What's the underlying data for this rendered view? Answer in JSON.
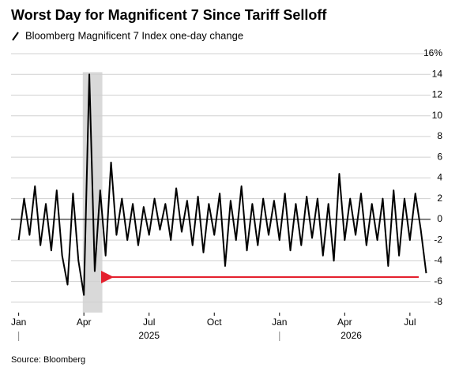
{
  "chart_data": {
    "type": "line",
    "title": "Worst Day for Magnificent 7 Since Tariff Selloff",
    "subtitle": "Bloomberg Magnificent 7 Index one-day change",
    "source": "Source: Bloomberg",
    "x": [
      0,
      0.25,
      0.5,
      0.75,
      1,
      1.25,
      1.5,
      1.75,
      2,
      2.25,
      2.5,
      2.75,
      3,
      3.25,
      3.5,
      3.75,
      4,
      4.25,
      4.5,
      4.75,
      5,
      5.25,
      5.5,
      5.75,
      6,
      6.25,
      6.5,
      6.75,
      7,
      7.25,
      7.5,
      7.75,
      8,
      8.25,
      8.5,
      8.75,
      9,
      9.25,
      9.5,
      9.75,
      10,
      10.25,
      10.5,
      10.75,
      11,
      11.25,
      11.5,
      11.75,
      12,
      12.25,
      12.5,
      12.75,
      13,
      13.25,
      13.5,
      13.75,
      14,
      14.25,
      14.5,
      14.75,
      15,
      15.25,
      15.5,
      15.75,
      16,
      16.25,
      16.5,
      16.75,
      17,
      17.25,
      17.5,
      17.75,
      18,
      18.25,
      18.5,
      18.75
    ],
    "series": [
      {
        "name": "Bloomberg Magnificent 7 Index one-day change",
        "color": "#000000",
        "values": [
          -2,
          2,
          -1.5,
          3.2,
          -2.5,
          1.5,
          -3,
          2.8,
          -3.5,
          -6.3,
          2.5,
          -4,
          -7.3,
          14,
          -5,
          2.8,
          -3.5,
          5.5,
          -1.5,
          2,
          -2,
          1.5,
          -2.5,
          1.2,
          -1.5,
          2,
          -1,
          1.5,
          -2,
          3,
          -1.2,
          1.8,
          -2.5,
          2.2,
          -3.2,
          1.5,
          -1.5,
          2.5,
          -4.5,
          1.8,
          -2,
          3.2,
          -3,
          1.5,
          -2.5,
          2,
          -1.5,
          1.8,
          -2,
          2.5,
          -3,
          1.5,
          -2.5,
          2.2,
          -1.8,
          2,
          -3.5,
          1.5,
          -4,
          4.4,
          -2,
          2,
          -1.5,
          2.5,
          -2.5,
          1.5,
          -2,
          2,
          -4.5,
          2.8,
          -3.5,
          2,
          -2,
          2.5,
          -1,
          -5.2
        ]
      }
    ],
    "xlim": [
      -0.35,
      18.95
    ],
    "xticks": [
      {
        "value": 0,
        "label": "Jan"
      },
      {
        "value": 3,
        "label": "Apr"
      },
      {
        "value": 6,
        "label": "Jul"
      },
      {
        "value": 9,
        "label": "Oct"
      },
      {
        "value": 12,
        "label": "Jan"
      },
      {
        "value": 15,
        "label": "Apr"
      },
      {
        "value": 18,
        "label": "Jul"
      }
    ],
    "year_labels": [
      {
        "value": 6,
        "label": "2025"
      },
      {
        "value": 15.3,
        "label": "2026"
      }
    ],
    "highlight_xlim": [
      2.95,
      3.85
    ],
    "ylim": [
      -9,
      16.5
    ],
    "yticks": [
      -8,
      -6,
      -4,
      -2,
      0,
      2,
      4,
      6,
      8,
      10,
      12,
      {
        "value": 14,
        "label": "14"
      },
      {
        "value": 16,
        "label": "16%"
      }
    ],
    "grid": true
  }
}
